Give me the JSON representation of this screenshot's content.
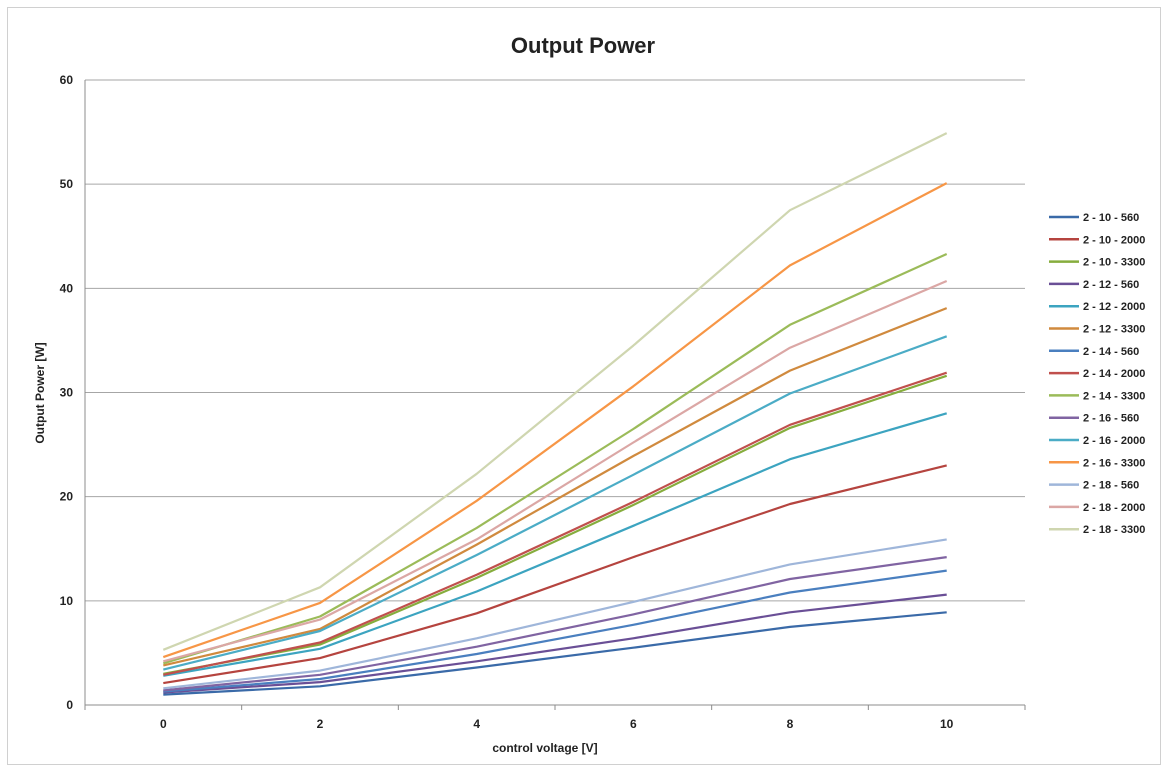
{
  "chart_data": {
    "type": "line",
    "title": "Output Power",
    "xlabel": "control voltage [V]",
    "ylabel": "Output Power [W]",
    "x": [
      0,
      2,
      4,
      6,
      8,
      10
    ],
    "xlim": [
      -1,
      11
    ],
    "ylim": [
      0,
      60
    ],
    "x_ticks": [
      0,
      2,
      4,
      6,
      8,
      10
    ],
    "y_ticks": [
      0,
      10,
      20,
      30,
      40,
      50,
      60
    ],
    "grid": "horizontal",
    "legend_position": "right",
    "series": [
      {
        "name": "2 - 10 - 560",
        "color": "#3a6aa8",
        "values": [
          1.0,
          1.8,
          3.6,
          5.5,
          7.5,
          8.9
        ]
      },
      {
        "name": "2 - 10 - 2000",
        "color": "#b5443f",
        "values": [
          2.1,
          4.5,
          8.8,
          14.2,
          19.3,
          23.0
        ]
      },
      {
        "name": "2 - 10 - 3300",
        "color": "#86ad3d",
        "values": [
          3.0,
          5.8,
          12.2,
          19.2,
          26.6,
          31.6
        ]
      },
      {
        "name": "2 - 12 - 560",
        "color": "#6a4f96",
        "values": [
          1.2,
          2.2,
          4.2,
          6.4,
          8.9,
          10.6
        ]
      },
      {
        "name": "2 - 12 - 2000",
        "color": "#3ca4c0",
        "values": [
          2.8,
          5.4,
          10.9,
          17.2,
          23.6,
          28.0
        ]
      },
      {
        "name": "2 - 12 - 3300",
        "color": "#d08a3e",
        "values": [
          3.8,
          7.3,
          15.4,
          23.9,
          32.1,
          38.1
        ]
      },
      {
        "name": "2 - 14 - 560",
        "color": "#4a7fbf",
        "values": [
          1.3,
          2.5,
          4.9,
          7.7,
          10.8,
          12.9
        ]
      },
      {
        "name": "2 - 14 - 2000",
        "color": "#c0504d",
        "values": [
          2.9,
          6.0,
          12.5,
          19.5,
          26.9,
          31.9
        ]
      },
      {
        "name": "2 - 14 - 3300",
        "color": "#9bbb59",
        "values": [
          4.0,
          8.5,
          17.0,
          26.5,
          36.5,
          43.3
        ]
      },
      {
        "name": "2 - 16 - 560",
        "color": "#8064a2",
        "values": [
          1.4,
          2.9,
          5.6,
          8.7,
          12.1,
          14.2
        ]
      },
      {
        "name": "2 - 16 - 2000",
        "color": "#4bacc6",
        "values": [
          3.4,
          7.1,
          14.4,
          22.1,
          29.9,
          35.4
        ]
      },
      {
        "name": "2 - 16 - 3300",
        "color": "#f79646",
        "values": [
          4.6,
          9.8,
          19.6,
          30.6,
          42.2,
          50.1
        ]
      },
      {
        "name": "2 - 18 - 560",
        "color": "#9fb6da",
        "values": [
          1.6,
          3.3,
          6.4,
          9.9,
          13.5,
          15.9
        ]
      },
      {
        "name": "2 - 18 - 2000",
        "color": "#dba7a5",
        "values": [
          4.2,
          8.2,
          15.9,
          25.2,
          34.3,
          40.7
        ]
      },
      {
        "name": "2 - 18 - 3300",
        "color": "#cfd6b0",
        "values": [
          5.3,
          11.3,
          22.2,
          34.5,
          47.5,
          54.9
        ]
      }
    ]
  }
}
